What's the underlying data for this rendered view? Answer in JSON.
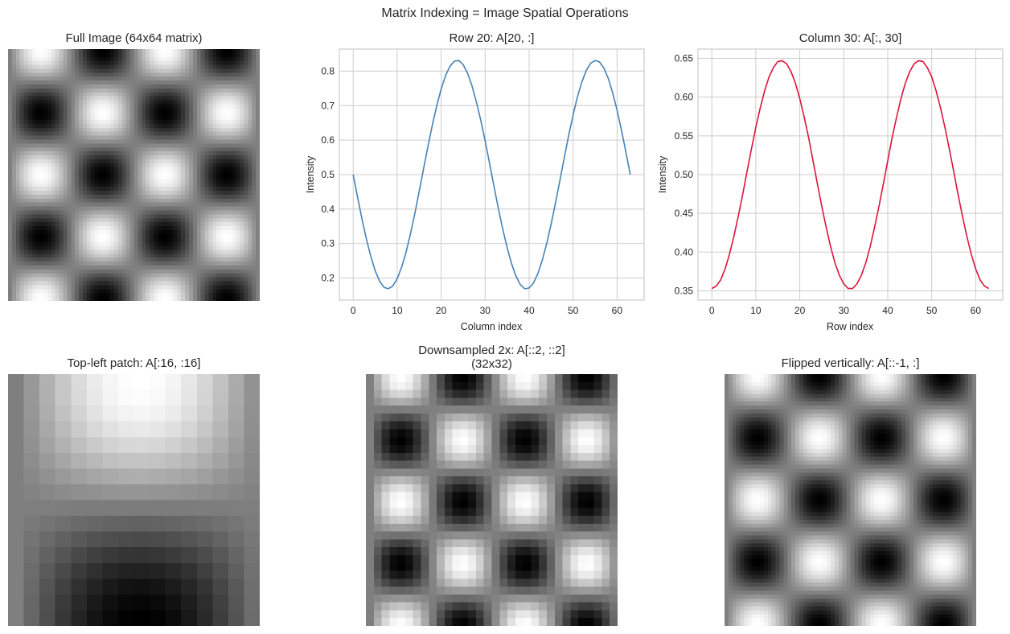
{
  "figure": {
    "suptitle": "Matrix Indexing = Image Spatial Operations",
    "colors": {
      "row_line": "#4682b4",
      "col_line": "#dc143c",
      "grid": "#cccccc",
      "frame": "#cccccc"
    }
  },
  "panels": {
    "full": {
      "title": "Full Image (64x64 matrix)"
    },
    "row": {
      "title": "Row 20: A[20, :]",
      "xlabel": "Column index",
      "ylabel": "Intensity"
    },
    "col": {
      "title": "Column 30: A[:, 30]",
      "xlabel": "Row index",
      "ylabel": "Intensity"
    },
    "patch": {
      "title": "Top-left patch: A[:16, :16]"
    },
    "down": {
      "title": "Downsampled 2x: A[::2, ::2]\n(32x32)"
    },
    "flip": {
      "title": "Flipped vertically: A[::-1, :]"
    }
  },
  "chart_data": [
    {
      "type": "heatmap",
      "title": "Full Image (64x64 matrix)",
      "shape": [
        64,
        64
      ],
      "colormap": "gray",
      "formula": "A[r,c] = 0.5 + 0.5*sin(4*pi*c/63)*cos(4*pi*r/63)",
      "vmin": 0,
      "vmax": 1
    },
    {
      "type": "line",
      "title": "Row 20: A[20, :]",
      "xlabel": "Column index",
      "ylabel": "Intensity",
      "xlim": [
        -3.15,
        66.15
      ],
      "ylim": [
        0.136,
        0.864
      ],
      "xticks": [
        0,
        10,
        20,
        30,
        40,
        50,
        60
      ],
      "yticks": [
        0.2,
        0.3,
        0.4,
        0.5,
        0.6,
        0.7,
        0.8
      ],
      "grid": true,
      "color": "#4682b4",
      "x": [
        0,
        1,
        2,
        3,
        4,
        5,
        6,
        7,
        8,
        9,
        10,
        11,
        12,
        13,
        14,
        15,
        16,
        17,
        18,
        19,
        20,
        21,
        22,
        23,
        24,
        25,
        26,
        27,
        28,
        29,
        30,
        31,
        32,
        33,
        34,
        35,
        36,
        37,
        38,
        39,
        40,
        41,
        42,
        43,
        44,
        45,
        46,
        47,
        48,
        49,
        50,
        51,
        52,
        53,
        54,
        55,
        56,
        57,
        58,
        59,
        60,
        61,
        62,
        63
      ],
      "values": [
        0.5,
        0.434,
        0.371,
        0.313,
        0.263,
        0.221,
        0.191,
        0.173,
        0.169,
        0.177,
        0.198,
        0.231,
        0.274,
        0.327,
        0.386,
        0.451,
        0.517,
        0.582,
        0.644,
        0.7,
        0.748,
        0.787,
        0.814,
        0.829,
        0.831,
        0.819,
        0.794,
        0.758,
        0.711,
        0.658,
        0.598,
        0.533,
        0.467,
        0.402,
        0.342,
        0.289,
        0.242,
        0.206,
        0.181,
        0.169,
        0.171,
        0.186,
        0.213,
        0.252,
        0.3,
        0.356,
        0.418,
        0.483,
        0.549,
        0.614,
        0.673,
        0.726,
        0.769,
        0.802,
        0.823,
        0.831,
        0.827,
        0.809,
        0.779,
        0.737,
        0.687,
        0.629,
        0.566,
        0.5
      ]
    },
    {
      "type": "line",
      "title": "Column 30: A[:, 30]",
      "xlabel": "Row index",
      "ylabel": "Intensity",
      "xlim": [
        -3.15,
        66.15
      ],
      "ylim": [
        0.338,
        0.662
      ],
      "xticks": [
        0,
        10,
        20,
        30,
        40,
        50,
        60
      ],
      "yticks": [
        0.35,
        0.4,
        0.45,
        0.5,
        0.55,
        0.6,
        0.65
      ],
      "ytick_labels": [
        "0.35",
        "0.40",
        "0.45",
        "0.50",
        "0.55",
        "0.60",
        "0.65"
      ],
      "grid": true,
      "color": "#dc143c",
      "x": [
        0,
        1,
        2,
        3,
        4,
        5,
        6,
        7,
        8,
        9,
        10,
        11,
        12,
        13,
        14,
        15,
        16,
        17,
        18,
        19,
        20,
        21,
        22,
        23,
        24,
        25,
        26,
        27,
        28,
        29,
        30,
        31,
        32,
        33,
        34,
        35,
        36,
        37,
        38,
        39,
        40,
        41,
        42,
        43,
        44,
        45,
        46,
        47,
        48,
        49,
        50,
        51,
        52,
        53,
        54,
        55,
        56,
        57,
        58,
        59,
        60,
        61,
        62,
        63
      ],
      "values": [
        0.353,
        0.356,
        0.364,
        0.378,
        0.397,
        0.42,
        0.446,
        0.474,
        0.504,
        0.533,
        0.561,
        0.586,
        0.608,
        0.626,
        0.638,
        0.646,
        0.647,
        0.643,
        0.633,
        0.618,
        0.598,
        0.574,
        0.548,
        0.518,
        0.488,
        0.459,
        0.432,
        0.407,
        0.386,
        0.37,
        0.359,
        0.353,
        0.353,
        0.359,
        0.37,
        0.386,
        0.407,
        0.432,
        0.459,
        0.488,
        0.518,
        0.548,
        0.574,
        0.598,
        0.618,
        0.633,
        0.643,
        0.647,
        0.646,
        0.638,
        0.626,
        0.608,
        0.586,
        0.561,
        0.533,
        0.504,
        0.474,
        0.446,
        0.42,
        0.397,
        0.378,
        0.364,
        0.356,
        0.353
      ]
    },
    {
      "type": "heatmap",
      "title": "Top-left patch: A[:16, :16]",
      "shape": [
        16,
        16
      ],
      "colormap": "gray",
      "slice": "A[:16, :16]"
    },
    {
      "type": "heatmap",
      "title": "Downsampled 2x: A[::2, ::2] (32x32)",
      "shape": [
        32,
        32
      ],
      "colormap": "gray",
      "slice": "A[::2, ::2]"
    },
    {
      "type": "heatmap",
      "title": "Flipped vertically: A[::-1, :]",
      "shape": [
        64,
        64
      ],
      "colormap": "gray",
      "slice": "A[::-1, :]"
    }
  ]
}
